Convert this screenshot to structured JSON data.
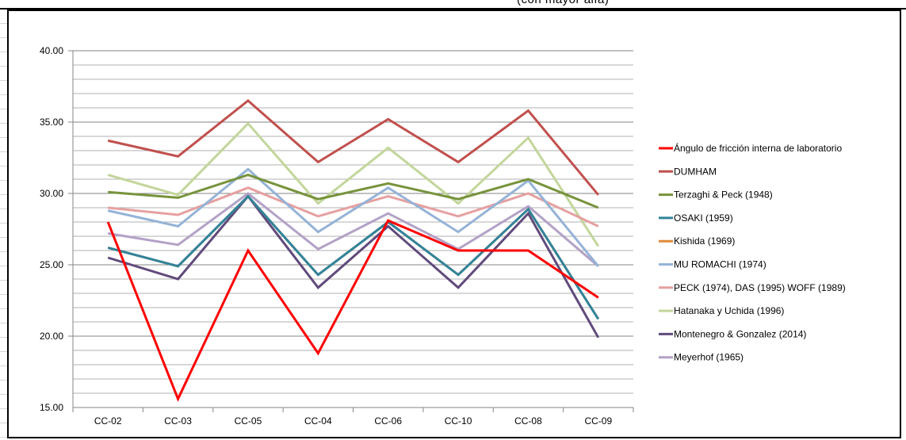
{
  "cut_off_text": "(con mayor alfa)",
  "chart_data": {
    "type": "line",
    "title": "",
    "xlabel": "",
    "ylabel": "",
    "categories": [
      "CC-02",
      "CC-03",
      "CC-05",
      "CC-04",
      "CC-06",
      "CC-10",
      "CC-08",
      "CC-09"
    ],
    "ylim": [
      15,
      40
    ],
    "yticks": [
      "15.00",
      "20.00",
      "25.00",
      "30.00",
      "35.00",
      "40.00"
    ],
    "grid": true,
    "legend_position": "right",
    "series": [
      {
        "name": "Ángulo de fricción interna de laboratorio",
        "color": "#ff0000",
        "values": [
          28.0,
          15.6,
          26.0,
          18.8,
          28.1,
          26.0,
          26.0,
          22.7
        ]
      },
      {
        "name": "DUMHAM",
        "color": "#c0504d",
        "values": [
          33.7,
          32.6,
          36.5,
          32.2,
          35.2,
          32.2,
          35.8,
          29.9
        ]
      },
      {
        "name": "Terzaghi & Peck (1948)",
        "color": "#77933c",
        "values": [
          30.1,
          29.7,
          31.3,
          29.6,
          30.7,
          29.6,
          31.0,
          29.0
        ]
      },
      {
        "name": "OSAKI  (1959)",
        "color": "#31849b",
        "values": [
          26.2,
          24.9,
          29.8,
          24.3,
          28.0,
          24.3,
          28.9,
          21.2
        ]
      },
      {
        "name": "Kishida (1969)",
        "color": "#e08b3c",
        "values": [
          26.2,
          24.9,
          29.8,
          24.3,
          28.0,
          24.3,
          28.9,
          21.2
        ]
      },
      {
        "name": "MU ROMACHI  (1974)",
        "color": "#95b3d7",
        "values": [
          28.8,
          27.7,
          31.7,
          27.3,
          30.4,
          27.3,
          30.9,
          24.9
        ]
      },
      {
        "name": "PECK (1974), DAS (1995) WOFF (1989)",
        "color": "#e6a0a0",
        "values": [
          29.0,
          28.5,
          30.4,
          28.4,
          29.8,
          28.4,
          30.0,
          27.7
        ]
      },
      {
        "name": "Hatanaka y  Uchida (1996)",
        "color": "#c3d69b",
        "values": [
          31.3,
          29.9,
          34.9,
          29.3,
          33.2,
          29.3,
          33.9,
          26.3
        ]
      },
      {
        "name": "Montenegro & Gonzalez (2014)",
        "color": "#604a7b",
        "values": [
          25.5,
          24.0,
          29.8,
          23.4,
          27.7,
          23.4,
          28.6,
          19.9
        ]
      },
      {
        "name": "Meyerhof (1965)",
        "color": "#b3a2c7",
        "values": [
          27.2,
          26.4,
          30.0,
          26.1,
          28.6,
          26.1,
          29.1,
          24.9
        ]
      }
    ]
  }
}
